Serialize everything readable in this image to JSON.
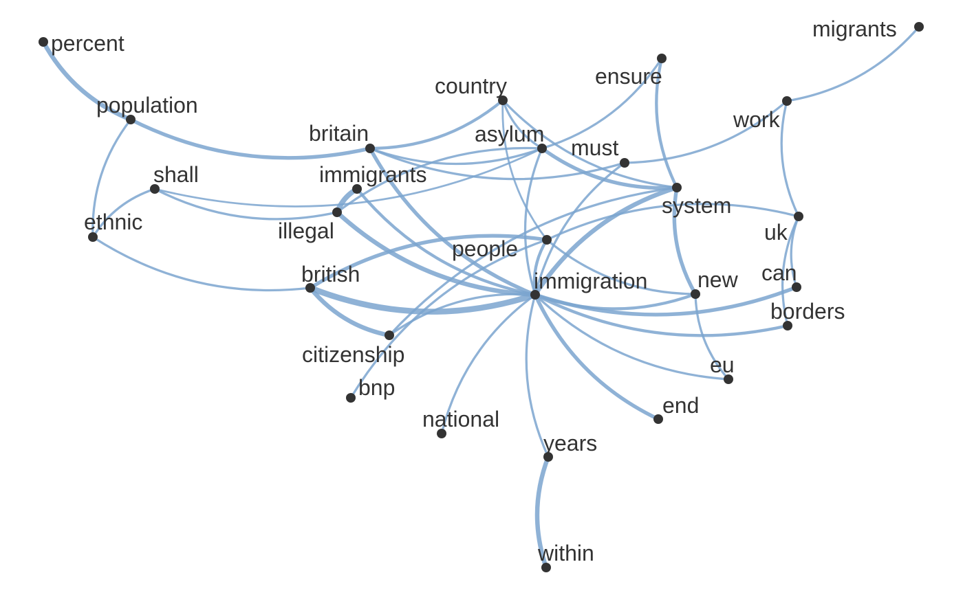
{
  "graph": {
    "edge_color": "#7ba4cf",
    "node_color": "#333333",
    "label_color": "#333333",
    "nodes": [
      {
        "id": "percent",
        "label": "percent"
      },
      {
        "id": "population",
        "label": "population"
      },
      {
        "id": "ethnic",
        "label": "ethnic"
      },
      {
        "id": "shall",
        "label": "shall"
      },
      {
        "id": "britain",
        "label": "britain"
      },
      {
        "id": "country",
        "label": "country"
      },
      {
        "id": "asylum",
        "label": "asylum"
      },
      {
        "id": "must",
        "label": "must"
      },
      {
        "id": "ensure",
        "label": "ensure"
      },
      {
        "id": "work",
        "label": "work"
      },
      {
        "id": "migrants",
        "label": "migrants"
      },
      {
        "id": "immigrants",
        "label": "immigrants"
      },
      {
        "id": "illegal",
        "label": "illegal"
      },
      {
        "id": "system",
        "label": "system"
      },
      {
        "id": "uk",
        "label": "uk"
      },
      {
        "id": "people",
        "label": "people"
      },
      {
        "id": "british",
        "label": "british"
      },
      {
        "id": "immigration",
        "label": "immigration"
      },
      {
        "id": "new",
        "label": "new"
      },
      {
        "id": "can",
        "label": "can"
      },
      {
        "id": "borders",
        "label": "borders"
      },
      {
        "id": "citizenship",
        "label": "citizenship"
      },
      {
        "id": "bnp",
        "label": "bnp"
      },
      {
        "id": "eu",
        "label": "eu"
      },
      {
        "id": "national",
        "label": "national"
      },
      {
        "id": "end",
        "label": "end"
      },
      {
        "id": "years",
        "label": "years"
      },
      {
        "id": "within",
        "label": "within"
      }
    ],
    "edges": [
      {
        "source": "percent",
        "target": "population",
        "weight": 5
      },
      {
        "source": "population",
        "target": "britain",
        "weight": 4
      },
      {
        "source": "population",
        "target": "ethnic",
        "weight": 2
      },
      {
        "source": "shall",
        "target": "ethnic",
        "weight": 2
      },
      {
        "source": "shall",
        "target": "illegal",
        "weight": 2
      },
      {
        "source": "shall",
        "target": "asylum",
        "weight": 1.5
      },
      {
        "source": "ethnic",
        "target": "british",
        "weight": 2
      },
      {
        "source": "britain",
        "target": "country",
        "weight": 3
      },
      {
        "source": "britain",
        "target": "asylum",
        "weight": 2
      },
      {
        "source": "britain",
        "target": "must",
        "weight": 2
      },
      {
        "source": "britain",
        "target": "immigration",
        "weight": 4
      },
      {
        "source": "country",
        "target": "asylum",
        "weight": 2
      },
      {
        "source": "country",
        "target": "system",
        "weight": 2
      },
      {
        "source": "country",
        "target": "people",
        "weight": 1.5
      },
      {
        "source": "asylum",
        "target": "ensure",
        "weight": 2
      },
      {
        "source": "asylum",
        "target": "system",
        "weight": 4
      },
      {
        "source": "asylum",
        "target": "immigration",
        "weight": 2
      },
      {
        "source": "asylum",
        "target": "illegal",
        "weight": 2
      },
      {
        "source": "must",
        "target": "work",
        "weight": 2
      },
      {
        "source": "must",
        "target": "immigration",
        "weight": 2
      },
      {
        "source": "ensure",
        "target": "system",
        "weight": 3
      },
      {
        "source": "work",
        "target": "migrants",
        "weight": 2
      },
      {
        "source": "work",
        "target": "uk",
        "weight": 2
      },
      {
        "source": "immigrants",
        "target": "illegal",
        "weight": 6
      },
      {
        "source": "immigrants",
        "target": "immigration",
        "weight": 3
      },
      {
        "source": "illegal",
        "target": "immigration",
        "weight": 5
      },
      {
        "source": "system",
        "target": "immigration",
        "weight": 5
      },
      {
        "source": "system",
        "target": "new",
        "weight": 4
      },
      {
        "source": "system",
        "target": "citizenship",
        "weight": 2
      },
      {
        "source": "uk",
        "target": "people",
        "weight": 2
      },
      {
        "source": "uk",
        "target": "borders",
        "weight": 2
      },
      {
        "source": "uk",
        "target": "can",
        "weight": 2
      },
      {
        "source": "people",
        "target": "british",
        "weight": 4
      },
      {
        "source": "people",
        "target": "immigration",
        "weight": 3
      },
      {
        "source": "people",
        "target": "new",
        "weight": 2
      },
      {
        "source": "people",
        "target": "bnp",
        "weight": 2
      },
      {
        "source": "british",
        "target": "immigration",
        "weight": 7
      },
      {
        "source": "british",
        "target": "citizenship",
        "weight": 5
      },
      {
        "source": "immigration",
        "target": "new",
        "weight": 3
      },
      {
        "source": "immigration",
        "target": "can",
        "weight": 4
      },
      {
        "source": "immigration",
        "target": "borders",
        "weight": 3
      },
      {
        "source": "immigration",
        "target": "eu",
        "weight": 2
      },
      {
        "source": "immigration",
        "target": "end",
        "weight": 4
      },
      {
        "source": "immigration",
        "target": "years",
        "weight": 2
      },
      {
        "source": "immigration",
        "target": "national",
        "weight": 2
      },
      {
        "source": "immigration",
        "target": "citizenship",
        "weight": 2
      },
      {
        "source": "new",
        "target": "eu",
        "weight": 2
      },
      {
        "source": "years",
        "target": "within",
        "weight": 5
      }
    ]
  }
}
